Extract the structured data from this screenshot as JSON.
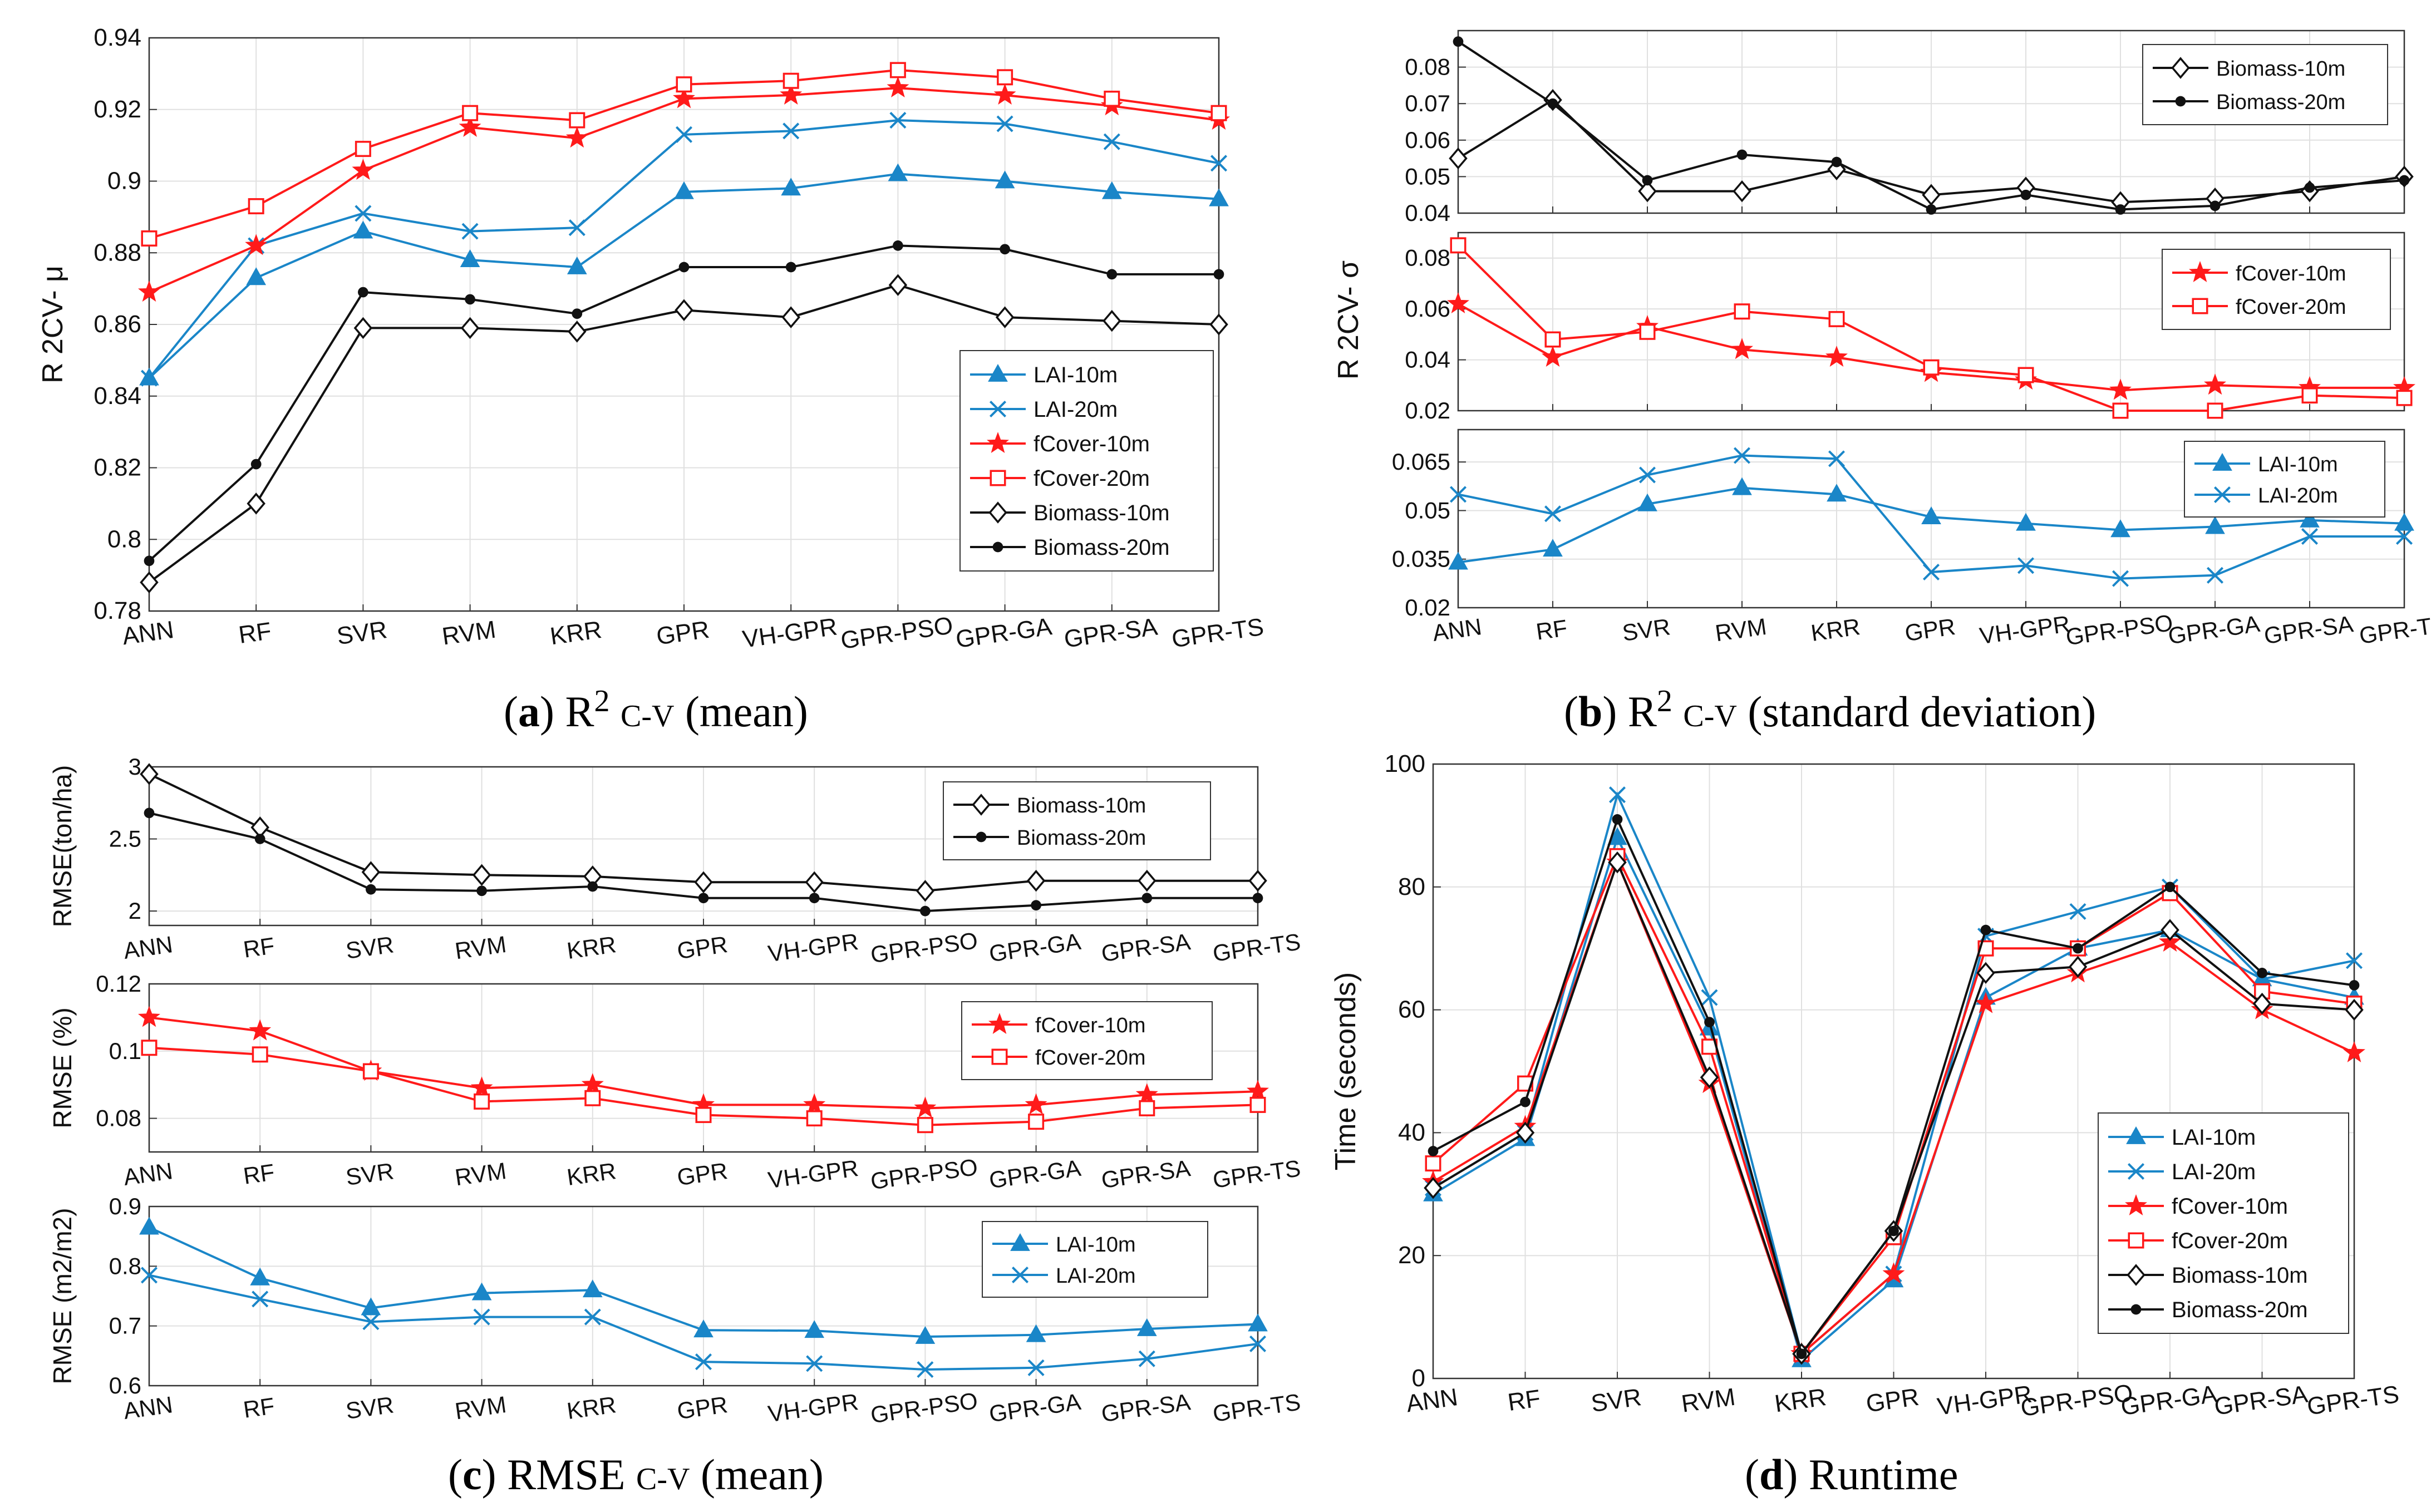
{
  "methods": [
    "ANN",
    "RF",
    "SVR",
    "RVM",
    "KRR",
    "GPR",
    "VH-GPR",
    "GPR-PSO",
    "GPR-GA",
    "GPR-SA",
    "GPR-TS"
  ],
  "colors": {
    "lai": "#1a86c8",
    "fcover": "#ff1a1a",
    "biomass": "#111111"
  },
  "captions": {
    "a": {
      "label": "a",
      "pre": "R",
      "sup": "2",
      "sub": "C-V",
      "post": "(mean)"
    },
    "b": {
      "label": "b",
      "pre": "R",
      "sup": "2",
      "sub": "C-V",
      "post": "(standard deviation)"
    },
    "c": {
      "label": "c",
      "pre": "RMSE",
      "sup": "",
      "sub": "C-V",
      "post": "(mean)"
    },
    "d": {
      "label": "d",
      "pre": "Runtime",
      "sup": "",
      "sub": "",
      "post": ""
    }
  },
  "chart_data": [
    {
      "id": "a",
      "type": "line",
      "title": "(a) R2 C-V (mean)",
      "ylabel": "R 2CV- μ",
      "ylim": [
        0.78,
        0.94
      ],
      "yticks": [
        "0.78",
        "0.8",
        "0.82",
        "0.84",
        "0.86",
        "0.88",
        "0.9",
        "0.92",
        "0.94"
      ],
      "legend": "bottom-right",
      "series": [
        {
          "name": "LAI-10m",
          "color": "lai",
          "marker": "triangle",
          "values": [
            0.845,
            0.873,
            0.886,
            0.878,
            0.876,
            0.897,
            0.898,
            0.902,
            0.9,
            0.897,
            0.895
          ]
        },
        {
          "name": "LAI-20m",
          "color": "lai",
          "marker": "x",
          "values": [
            0.845,
            0.882,
            0.891,
            0.886,
            0.887,
            0.913,
            0.914,
            0.917,
            0.916,
            0.911,
            0.905
          ]
        },
        {
          "name": "fCover-10m",
          "color": "fcover",
          "marker": "star",
          "values": [
            0.869,
            0.882,
            0.903,
            0.915,
            0.912,
            0.923,
            0.924,
            0.926,
            0.924,
            0.921,
            0.917
          ]
        },
        {
          "name": "fCover-20m",
          "color": "fcover",
          "marker": "square",
          "values": [
            0.884,
            0.893,
            0.909,
            0.919,
            0.917,
            0.927,
            0.928,
            0.931,
            0.929,
            0.923,
            0.919
          ]
        },
        {
          "name": "Biomass-10m",
          "color": "biomass",
          "marker": "diamond",
          "values": [
            0.788,
            0.81,
            0.859,
            0.859,
            0.858,
            0.864,
            0.862,
            0.871,
            0.862,
            0.861,
            0.86
          ]
        },
        {
          "name": "Biomass-20m",
          "color": "biomass",
          "marker": "dot",
          "values": [
            0.794,
            0.821,
            0.869,
            0.867,
            0.863,
            0.876,
            0.876,
            0.882,
            0.881,
            0.874,
            0.874
          ]
        }
      ]
    },
    {
      "id": "b",
      "type": "line",
      "title": "(b) R2 C-V (standard deviation)",
      "ylabel": "R 2CV- σ",
      "legend": "top-right",
      "panels": [
        {
          "ylim": [
            0.04,
            0.09
          ],
          "yticks": [
            "0.04",
            "0.05",
            "0.06",
            "0.07",
            "0.08"
          ],
          "yvals": [
            0.04,
            0.05,
            0.06,
            0.07,
            0.08
          ],
          "series": [
            {
              "name": "Biomass-10m",
              "color": "biomass",
              "marker": "diamond",
              "values": [
                0.055,
                0.071,
                0.046,
                0.046,
                0.052,
                0.045,
                0.047,
                0.043,
                0.044,
                0.046,
                0.05
              ]
            },
            {
              "name": "Biomass-20m",
              "color": "biomass",
              "marker": "dot",
              "values": [
                0.087,
                0.07,
                0.049,
                0.056,
                0.054,
                0.041,
                0.045,
                0.041,
                0.042,
                0.047,
                0.049
              ]
            }
          ]
        },
        {
          "ylim": [
            0.02,
            0.09
          ],
          "yticks": [
            "0.02",
            "0.04",
            "0.06",
            "0.08"
          ],
          "yvals": [
            0.02,
            0.04,
            0.06,
            0.08
          ],
          "series": [
            {
              "name": "fCover-10m",
              "color": "fcover",
              "marker": "star",
              "values": [
                0.062,
                0.041,
                0.053,
                0.044,
                0.041,
                0.035,
                0.032,
                0.028,
                0.03,
                0.029,
                0.029
              ]
            },
            {
              "name": "fCover-20m",
              "color": "fcover",
              "marker": "square",
              "values": [
                0.085,
                0.048,
                0.051,
                0.059,
                0.056,
                0.037,
                0.034,
                0.02,
                0.02,
                0.026,
                0.025
              ]
            }
          ]
        },
        {
          "ylim": [
            0.02,
            0.075
          ],
          "yticks": [
            "0.02",
            "0.035",
            "0.05",
            "0.065"
          ],
          "yvals": [
            0.02,
            0.035,
            0.05,
            0.065
          ],
          "series": [
            {
              "name": "LAI-10m",
              "color": "lai",
              "marker": "triangle",
              "values": [
                0.034,
                0.038,
                0.052,
                0.057,
                0.055,
                0.048,
                0.046,
                0.044,
                0.045,
                0.047,
                0.046
              ]
            },
            {
              "name": "LAI-20m",
              "color": "lai",
              "marker": "x",
              "values": [
                0.055,
                0.049,
                0.061,
                0.067,
                0.066,
                0.031,
                0.033,
                0.029,
                0.03,
                0.042,
                0.042
              ]
            }
          ]
        }
      ]
    },
    {
      "id": "c",
      "type": "line",
      "title": "(c) RMSE C-V (mean)",
      "legend": "top-right",
      "panels": [
        {
          "ylabel": "RMSE(ton/ha)",
          "ylim": [
            1.9,
            3.0
          ],
          "yticks": [
            "2",
            "2.5",
            "3"
          ],
          "yvals": [
            2,
            2.5,
            3
          ],
          "series": [
            {
              "name": "Biomass-10m",
              "color": "biomass",
              "marker": "diamond",
              "values": [
                2.95,
                2.58,
                2.27,
                2.25,
                2.24,
                2.2,
                2.2,
                2.14,
                2.21,
                2.21,
                2.21
              ]
            },
            {
              "name": "Biomass-20m",
              "color": "biomass",
              "marker": "dot",
              "values": [
                2.68,
                2.5,
                2.15,
                2.14,
                2.17,
                2.09,
                2.09,
                2.0,
                2.04,
                2.09,
                2.09
              ]
            }
          ]
        },
        {
          "ylabel": "RMSE (%)",
          "ylim": [
            0.07,
            0.12
          ],
          "yticks": [
            "0.08",
            "0.1",
            "0.12"
          ],
          "yvals": [
            0.08,
            0.1,
            0.12
          ],
          "series": [
            {
              "name": "fCover-10m",
              "color": "fcover",
              "marker": "star",
              "values": [
                0.11,
                0.106,
                0.094,
                0.089,
                0.09,
                0.084,
                0.084,
                0.083,
                0.084,
                0.087,
                0.088
              ]
            },
            {
              "name": "fCover-20m",
              "color": "fcover",
              "marker": "square",
              "values": [
                0.101,
                0.099,
                0.094,
                0.085,
                0.086,
                0.081,
                0.08,
                0.078,
                0.079,
                0.083,
                0.084
              ]
            }
          ]
        },
        {
          "ylabel": "RMSE (m2/m2)",
          "ylim": [
            0.6,
            0.9
          ],
          "yticks": [
            "0.6",
            "0.7",
            "0.8",
            "0.9"
          ],
          "yvals": [
            0.6,
            0.7,
            0.8,
            0.9
          ],
          "series": [
            {
              "name": "LAI-10m",
              "color": "lai",
              "marker": "triangle",
              "values": [
                0.865,
                0.78,
                0.73,
                0.755,
                0.76,
                0.693,
                0.692,
                0.682,
                0.685,
                0.695,
                0.703
              ]
            },
            {
              "name": "LAI-20m",
              "color": "lai",
              "marker": "x",
              "values": [
                0.785,
                0.745,
                0.707,
                0.715,
                0.715,
                0.64,
                0.637,
                0.627,
                0.63,
                0.645,
                0.67
              ]
            }
          ]
        }
      ]
    },
    {
      "id": "d",
      "type": "line",
      "title": "(d) Runtime",
      "ylabel": "Time (seconds)",
      "ylim": [
        0,
        100
      ],
      "yticks": [
        "0",
        "20",
        "40",
        "60",
        "80",
        "100"
      ],
      "yvals": [
        0,
        20,
        40,
        60,
        80,
        100
      ],
      "legend": "bottom-right",
      "series": [
        {
          "name": "LAI-10m",
          "color": "lai",
          "marker": "triangle",
          "values": [
            30,
            39,
            88,
            57,
            3,
            16,
            62,
            70,
            73,
            65,
            62
          ]
        },
        {
          "name": "LAI-20m",
          "color": "lai",
          "marker": "x",
          "values": [
            31,
            40,
            95,
            62,
            4,
            17,
            72,
            76,
            80,
            65,
            68
          ]
        },
        {
          "name": "fCover-10m",
          "color": "fcover",
          "marker": "star",
          "values": [
            32,
            41,
            84,
            48,
            4,
            17,
            61,
            66,
            71,
            60,
            53
          ]
        },
        {
          "name": "fCover-20m",
          "color": "fcover",
          "marker": "square",
          "values": [
            35,
            48,
            85,
            54,
            4,
            23,
            70,
            70,
            79,
            63,
            61
          ]
        },
        {
          "name": "Biomass-10m",
          "color": "biomass",
          "marker": "diamond",
          "values": [
            31,
            40,
            84,
            49,
            4,
            24,
            66,
            67,
            73,
            61,
            60
          ]
        },
        {
          "name": "Biomass-20m",
          "color": "biomass",
          "marker": "dot",
          "values": [
            37,
            45,
            91,
            58,
            4,
            24,
            73,
            70,
            80,
            66,
            64
          ]
        }
      ]
    }
  ]
}
